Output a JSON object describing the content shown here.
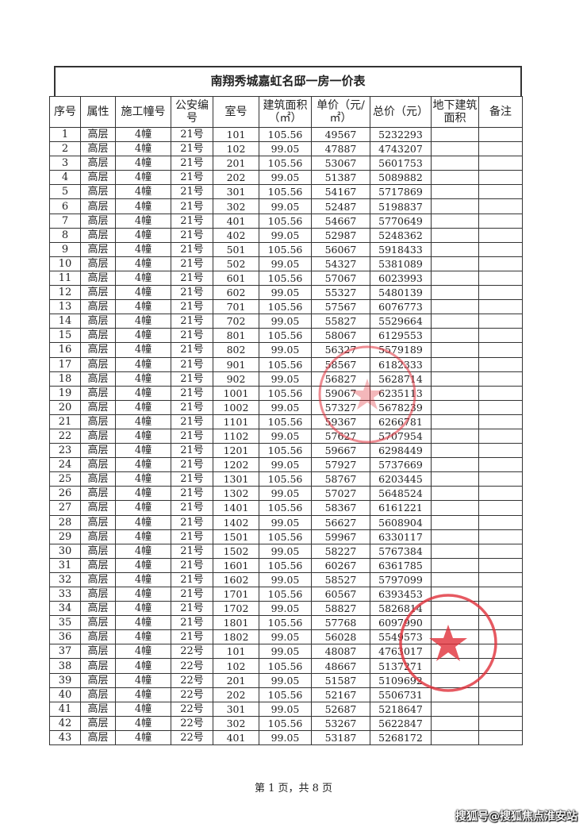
{
  "document": {
    "title": "南翔秀城嘉虹名邸一房一价表",
    "headers": [
      "序号",
      "属性",
      "施工幢号",
      "公安编号",
      "室号",
      "建筑面积（㎡）",
      "单价（元/㎡）",
      "总价（元）",
      "地下建筑面积",
      "备注"
    ],
    "rows": [
      [
        "1",
        "高层",
        "4幢",
        "21号",
        "101",
        "105.56",
        "49567",
        "5232293",
        "",
        ""
      ],
      [
        "2",
        "高层",
        "4幢",
        "21号",
        "102",
        "99.05",
        "47887",
        "4743207",
        "",
        ""
      ],
      [
        "3",
        "高层",
        "4幢",
        "21号",
        "201",
        "105.56",
        "53067",
        "5601753",
        "",
        ""
      ],
      [
        "4",
        "高层",
        "4幢",
        "21号",
        "202",
        "99.05",
        "51387",
        "5089882",
        "",
        ""
      ],
      [
        "5",
        "高层",
        "4幢",
        "21号",
        "301",
        "105.56",
        "54167",
        "5717869",
        "",
        ""
      ],
      [
        "6",
        "高层",
        "4幢",
        "21号",
        "302",
        "99.05",
        "52487",
        "5198837",
        "",
        ""
      ],
      [
        "7",
        "高层",
        "4幢",
        "21号",
        "401",
        "105.56",
        "54667",
        "5770649",
        "",
        ""
      ],
      [
        "8",
        "高层",
        "4幢",
        "21号",
        "402",
        "99.05",
        "52987",
        "5248362",
        "",
        ""
      ],
      [
        "9",
        "高层",
        "4幢",
        "21号",
        "501",
        "105.56",
        "56067",
        "5918433",
        "",
        ""
      ],
      [
        "10",
        "高层",
        "4幢",
        "21号",
        "502",
        "99.05",
        "54327",
        "5381089",
        "",
        ""
      ],
      [
        "11",
        "高层",
        "4幢",
        "21号",
        "601",
        "105.56",
        "57067",
        "6023993",
        "",
        ""
      ],
      [
        "12",
        "高层",
        "4幢",
        "21号",
        "602",
        "99.05",
        "55327",
        "5480139",
        "",
        ""
      ],
      [
        "13",
        "高层",
        "4幢",
        "21号",
        "701",
        "105.56",
        "57567",
        "6076773",
        "",
        ""
      ],
      [
        "14",
        "高层",
        "4幢",
        "21号",
        "702",
        "99.05",
        "55827",
        "5529664",
        "",
        ""
      ],
      [
        "15",
        "高层",
        "4幢",
        "21号",
        "801",
        "105.56",
        "58067",
        "6129553",
        "",
        ""
      ],
      [
        "16",
        "高层",
        "4幢",
        "21号",
        "802",
        "99.05",
        "56327",
        "5579189",
        "",
        ""
      ],
      [
        "17",
        "高层",
        "4幢",
        "21号",
        "901",
        "105.56",
        "58567",
        "6182333",
        "",
        ""
      ],
      [
        "18",
        "高层",
        "4幢",
        "21号",
        "902",
        "99.05",
        "56827",
        "5628714",
        "",
        ""
      ],
      [
        "19",
        "高层",
        "4幢",
        "21号",
        "1001",
        "105.56",
        "59067",
        "6235113",
        "",
        ""
      ],
      [
        "20",
        "高层",
        "4幢",
        "21号",
        "1002",
        "99.05",
        "57327",
        "5678239",
        "",
        ""
      ],
      [
        "21",
        "高层",
        "4幢",
        "21号",
        "1101",
        "105.56",
        "59367",
        "6266781",
        "",
        ""
      ],
      [
        "22",
        "高层",
        "4幢",
        "21号",
        "1102",
        "99.05",
        "57627",
        "5707954",
        "",
        ""
      ],
      [
        "23",
        "高层",
        "4幢",
        "21号",
        "1201",
        "105.56",
        "59667",
        "6298449",
        "",
        ""
      ],
      [
        "24",
        "高层",
        "4幢",
        "21号",
        "1202",
        "99.05",
        "57927",
        "5737669",
        "",
        ""
      ],
      [
        "25",
        "高层",
        "4幢",
        "21号",
        "1301",
        "105.56",
        "58767",
        "6203445",
        "",
        ""
      ],
      [
        "26",
        "高层",
        "4幢",
        "21号",
        "1302",
        "99.05",
        "57027",
        "5648524",
        "",
        ""
      ],
      [
        "27",
        "高层",
        "4幢",
        "21号",
        "1401",
        "105.56",
        "58367",
        "6161221",
        "",
        ""
      ],
      [
        "28",
        "高层",
        "4幢",
        "21号",
        "1402",
        "99.05",
        "56627",
        "5608904",
        "",
        ""
      ],
      [
        "29",
        "高层",
        "4幢",
        "21号",
        "1501",
        "105.56",
        "59967",
        "6330117",
        "",
        ""
      ],
      [
        "30",
        "高层",
        "4幢",
        "21号",
        "1502",
        "99.05",
        "58227",
        "5767384",
        "",
        ""
      ],
      [
        "31",
        "高层",
        "4幢",
        "21号",
        "1601",
        "105.56",
        "60267",
        "6361785",
        "",
        ""
      ],
      [
        "32",
        "高层",
        "4幢",
        "21号",
        "1602",
        "99.05",
        "58527",
        "5797099",
        "",
        ""
      ],
      [
        "33",
        "高层",
        "4幢",
        "21号",
        "1701",
        "105.56",
        "60567",
        "6393453",
        "",
        ""
      ],
      [
        "34",
        "高层",
        "4幢",
        "21号",
        "1702",
        "99.05",
        "58827",
        "5826814",
        "",
        ""
      ],
      [
        "35",
        "高层",
        "4幢",
        "21号",
        "1801",
        "105.56",
        "57768",
        "6097990",
        "",
        ""
      ],
      [
        "36",
        "高层",
        "4幢",
        "21号",
        "1802",
        "99.05",
        "56028",
        "5549573",
        "",
        ""
      ],
      [
        "37",
        "高层",
        "4幢",
        "22号",
        "101",
        "99.05",
        "48087",
        "4763017",
        "",
        ""
      ],
      [
        "38",
        "高层",
        "4幢",
        "22号",
        "102",
        "105.56",
        "48667",
        "5137271",
        "",
        ""
      ],
      [
        "39",
        "高层",
        "4幢",
        "22号",
        "201",
        "99.05",
        "51587",
        "5109692",
        "",
        ""
      ],
      [
        "40",
        "高层",
        "4幢",
        "22号",
        "202",
        "105.56",
        "52167",
        "5506731",
        "",
        ""
      ],
      [
        "41",
        "高层",
        "4幢",
        "22号",
        "301",
        "99.05",
        "52687",
        "5218647",
        "",
        ""
      ],
      [
        "42",
        "高层",
        "4幢",
        "22号",
        "302",
        "105.56",
        "53267",
        "5622847",
        "",
        ""
      ],
      [
        "43",
        "高层",
        "4幢",
        "22号",
        "401",
        "99.05",
        "53187",
        "5268172",
        "",
        ""
      ]
    ],
    "footer": "第 1 页，共 8 页"
  },
  "watermark": "搜狐号@搜狐焦点淮安站",
  "stamp_color": "#e0303a"
}
